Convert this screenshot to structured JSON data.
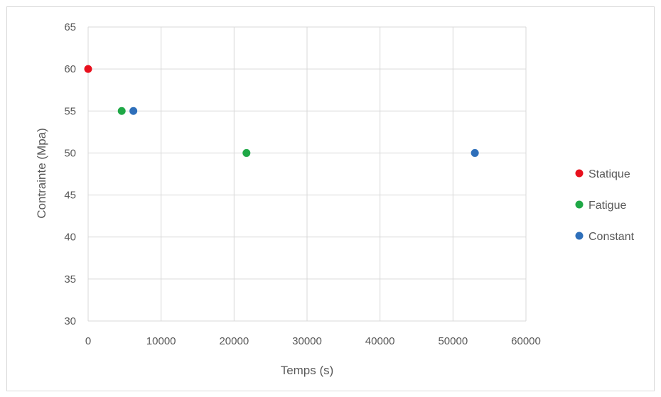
{
  "chart_data": {
    "type": "scatter",
    "title": "",
    "xlabel": "Temps (s)",
    "ylabel": "Contrainte (Mpa)",
    "xlim": [
      0,
      60000
    ],
    "ylim": [
      30,
      65
    ],
    "x_ticks": [
      0,
      10000,
      20000,
      30000,
      40000,
      50000,
      60000
    ],
    "y_ticks": [
      30,
      35,
      40,
      45,
      50,
      55,
      60,
      65
    ],
    "grid": true,
    "legend_position": "right",
    "series": [
      {
        "name": "Statique",
        "color": "#e8101d",
        "points": [
          {
            "x": 0,
            "y": 60
          }
        ]
      },
      {
        "name": "Fatigue",
        "color": "#1fa846",
        "points": [
          {
            "x": 4600,
            "y": 55
          },
          {
            "x": 21700,
            "y": 50
          }
        ]
      },
      {
        "name": "Constant",
        "color": "#2e6fba",
        "points": [
          {
            "x": 6200,
            "y": 55
          },
          {
            "x": 53000,
            "y": 50
          }
        ]
      }
    ]
  }
}
